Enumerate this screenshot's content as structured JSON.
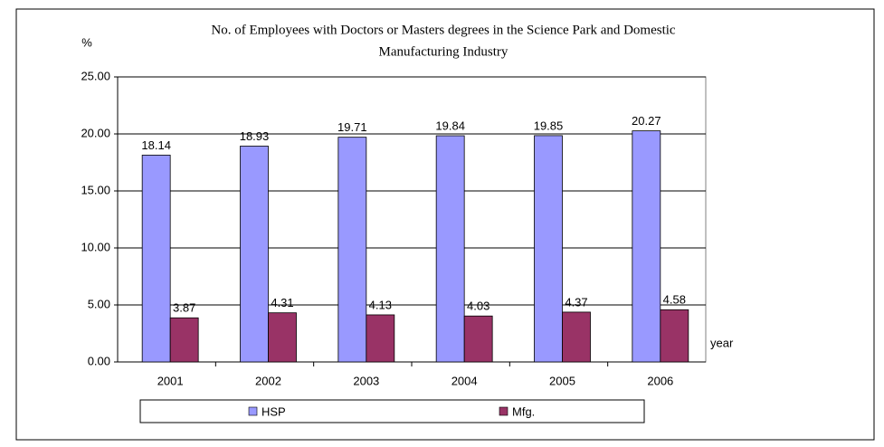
{
  "chart_data": {
    "type": "bar",
    "title": [
      "No. of Employees with Doctors or Masters degrees in the Science Park and Domestic",
      "Manufacturing Industry"
    ],
    "y_label": "%",
    "x_label": "year",
    "categories": [
      "2001",
      "2002",
      "2003",
      "2004",
      "2005",
      "2006"
    ],
    "series": [
      {
        "name": "HSP",
        "color": "#9999ff",
        "values": [
          18.14,
          18.93,
          19.71,
          19.84,
          19.85,
          20.27
        ]
      },
      {
        "name": "Mfg.",
        "color": "#993366",
        "values": [
          3.87,
          4.31,
          4.13,
          4.03,
          4.37,
          4.58
        ]
      }
    ],
    "ylim": [
      0,
      25
    ],
    "yticks": [
      {
        "value": 0,
        "label": "0.00"
      },
      {
        "value": 5,
        "label": "5.00"
      },
      {
        "value": 10,
        "label": "10.00"
      },
      {
        "value": 15,
        "label": "15.00"
      },
      {
        "value": 20,
        "label": "20.00"
      },
      {
        "value": 25,
        "label": "25.00"
      }
    ],
    "grid": true,
    "legend": "bottom"
  }
}
